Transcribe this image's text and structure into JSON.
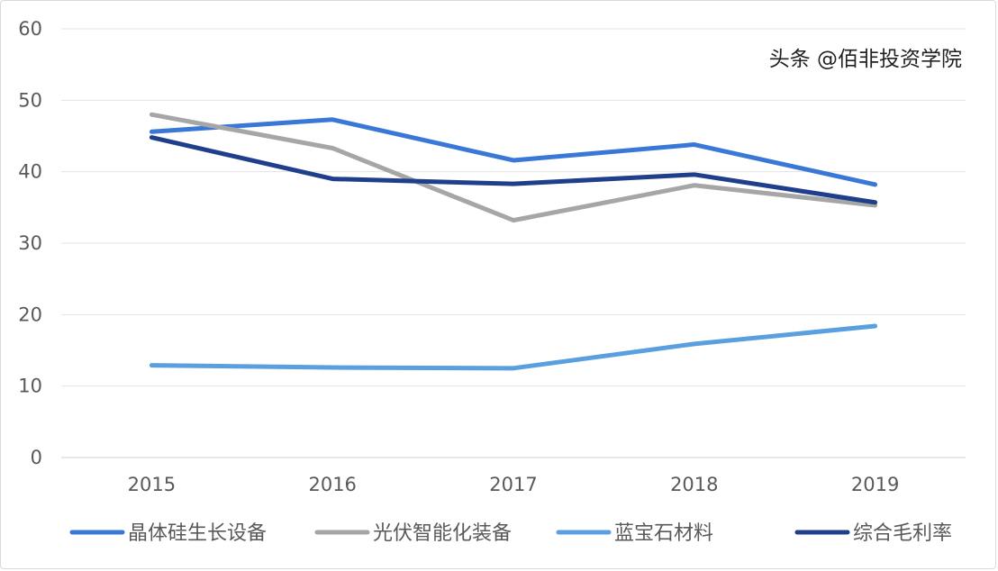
{
  "chart_data": {
    "type": "line",
    "title": "",
    "xlabel": "",
    "ylabel": "",
    "categories": [
      "2015",
      "2016",
      "2017",
      "2018",
      "2019"
    ],
    "ylim": [
      0,
      60
    ],
    "yticks": [
      0,
      10,
      20,
      30,
      40,
      50,
      60
    ],
    "grid": true,
    "legend_placement": "bottom",
    "series": [
      {
        "name": "晶体硅生长设备",
        "color": "#3a78d8",
        "values": [
          45.6,
          47.3,
          41.6,
          43.8,
          38.2
        ]
      },
      {
        "name": "光伏智能化装备",
        "color": "#a6a6a6",
        "values": [
          48.0,
          43.3,
          33.2,
          38.1,
          35.3
        ]
      },
      {
        "name": "蓝宝石材料",
        "color": "#5aa0e0",
        "values": [
          12.9,
          12.6,
          12.5,
          15.9,
          18.4
        ]
      },
      {
        "name": "综合毛利率",
        "color": "#1f3f8c",
        "values": [
          44.8,
          39.0,
          38.3,
          39.6,
          35.7
        ]
      }
    ]
  },
  "watermark": "头条 @佰非投资学院"
}
